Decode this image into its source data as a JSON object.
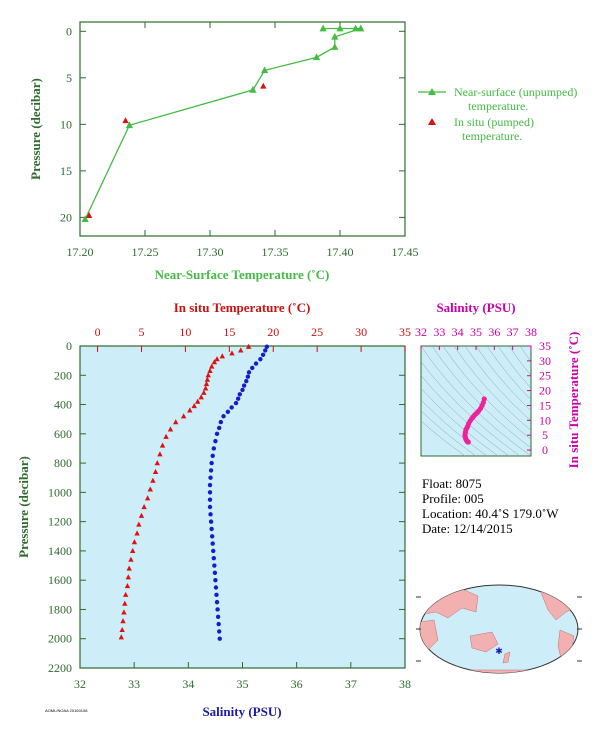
{
  "colors": {
    "axis_green": "#2e6b2e",
    "near_surface": "#44bb44",
    "in_situ_temp": "#dd1111",
    "salinity": "#1a1acc",
    "ts_magenta": "#ee2299",
    "panel_bg": "#cdeef8",
    "map_ocean": "#cdeef8",
    "map_land": "#f2b0b0"
  },
  "chart_data": [
    {
      "type": "line",
      "xlabel": "Near-Surface Temperature (˚C)",
      "ylabel": "Pressure (decibar)",
      "xlim": [
        17.2,
        17.45
      ],
      "ylim": [
        22,
        -1
      ],
      "xticks": [
        "17.20",
        "17.25",
        "17.30",
        "17.35",
        "17.40",
        "17.45"
      ],
      "yticks": [
        "0",
        "5",
        "10",
        "15",
        "20"
      ],
      "grid": false,
      "legend_position": "right",
      "series": [
        {
          "name": "Near-surface (unpumped) temperature.",
          "marker": "triangle",
          "points": [
            [
              17.387,
              -0.3
            ],
            [
              17.4,
              -0.3
            ],
            [
              17.412,
              -0.3
            ],
            [
              17.416,
              -0.3
            ],
            [
              17.396,
              0.6
            ],
            [
              17.396,
              1.7
            ],
            [
              17.382,
              2.8
            ],
            [
              17.342,
              4.2
            ],
            [
              17.333,
              6.3
            ],
            [
              17.238,
              10.1
            ],
            [
              17.204,
              20.2
            ]
          ]
        },
        {
          "name": "In situ (pumped) temperature.",
          "marker": "triangle",
          "points": [
            [
              17.235,
              9.6
            ],
            [
              17.341,
              5.9
            ],
            [
              17.207,
              19.8
            ]
          ]
        }
      ]
    },
    {
      "type": "scatter",
      "ylabel": "Pressure (decibar)",
      "ylim": [
        2200,
        0
      ],
      "yticks": [
        "0",
        "200",
        "400",
        "600",
        "800",
        "1000",
        "1200",
        "1400",
        "1600",
        "1800",
        "2000",
        "2200"
      ],
      "top_axis": {
        "label": "In situ Temperature (˚C)",
        "range": [
          -2,
          35
        ],
        "ticks": [
          "0",
          "5",
          "10",
          "15",
          "20",
          "25",
          "30",
          "35"
        ]
      },
      "bottom_axis": {
        "label": "Salinity (PSU)",
        "range": [
          32,
          38
        ],
        "ticks": [
          "32",
          "33",
          "34",
          "35",
          "36",
          "37",
          "38"
        ]
      },
      "series": [
        {
          "name": "In situ Temperature (˚C)",
          "marker": "triangle",
          "axis": "top",
          "points": [
            [
              17.2,
              5
            ],
            [
              16.3,
              30
            ],
            [
              15.3,
              50
            ],
            [
              14.2,
              70
            ],
            [
              13.6,
              90
            ],
            [
              13.3,
              110
            ],
            [
              13.0,
              140
            ],
            [
              12.8,
              170
            ],
            [
              12.6,
              200
            ],
            [
              12.5,
              230
            ],
            [
              12.4,
              260
            ],
            [
              12.3,
              290
            ],
            [
              12.1,
              320
            ],
            [
              11.8,
              350
            ],
            [
              11.4,
              380
            ],
            [
              11.0,
              410
            ],
            [
              10.5,
              440
            ],
            [
              9.8,
              480
            ],
            [
              8.9,
              520
            ],
            [
              8.3,
              570
            ],
            [
              7.8,
              620
            ],
            [
              7.4,
              680
            ],
            [
              7.1,
              740
            ],
            [
              6.8,
              800
            ],
            [
              6.6,
              860
            ],
            [
              6.3,
              920
            ],
            [
              6.0,
              980
            ],
            [
              5.7,
              1040
            ],
            [
              5.3,
              1100
            ],
            [
              5.0,
              1160
            ],
            [
              4.7,
              1220
            ],
            [
              4.5,
              1280
            ],
            [
              4.2,
              1340
            ],
            [
              4.0,
              1400
            ],
            [
              3.8,
              1460
            ],
            [
              3.6,
              1520
            ],
            [
              3.5,
              1580
            ],
            [
              3.4,
              1640
            ],
            [
              3.2,
              1700
            ],
            [
              3.1,
              1760
            ],
            [
              3.0,
              1820
            ],
            [
              2.9,
              1880
            ],
            [
              2.8,
              1940
            ],
            [
              2.7,
              1990
            ]
          ]
        },
        {
          "name": "Salinity (PSU)",
          "marker": "dot",
          "axis": "bottom",
          "points": [
            [
              35.45,
              5
            ],
            [
              35.42,
              30
            ],
            [
              35.38,
              60
            ],
            [
              35.33,
              90
            ],
            [
              35.25,
              120
            ],
            [
              35.18,
              150
            ],
            [
              35.12,
              180
            ],
            [
              35.1,
              210
            ],
            [
              35.07,
              240
            ],
            [
              35.03,
              270
            ],
            [
              35.0,
              300
            ],
            [
              34.95,
              330
            ],
            [
              34.92,
              360
            ],
            [
              34.88,
              390
            ],
            [
              34.8,
              420
            ],
            [
              34.73,
              450
            ],
            [
              34.65,
              480
            ],
            [
              34.6,
              520
            ],
            [
              34.57,
              560
            ],
            [
              34.53,
              600
            ],
            [
              34.5,
              650
            ],
            [
              34.47,
              700
            ],
            [
              34.45,
              750
            ],
            [
              34.43,
              800
            ],
            [
              34.42,
              850
            ],
            [
              34.41,
              900
            ],
            [
              34.4,
              950
            ],
            [
              34.4,
              1000
            ],
            [
              34.4,
              1050
            ],
            [
              34.4,
              1100
            ],
            [
              34.41,
              1150
            ],
            [
              34.42,
              1200
            ],
            [
              34.43,
              1250
            ],
            [
              34.44,
              1300
            ],
            [
              34.45,
              1350
            ],
            [
              34.46,
              1400
            ],
            [
              34.47,
              1450
            ],
            [
              34.48,
              1500
            ],
            [
              34.49,
              1550
            ],
            [
              34.5,
              1600
            ],
            [
              34.51,
              1650
            ],
            [
              34.52,
              1700
            ],
            [
              34.53,
              1750
            ],
            [
              34.54,
              1800
            ],
            [
              34.55,
              1850
            ],
            [
              34.56,
              1900
            ],
            [
              34.57,
              1950
            ],
            [
              34.58,
              2000
            ]
          ]
        }
      ]
    },
    {
      "type": "scatter",
      "title": "Salinity (PSU)",
      "ylabel": "In situ Temperature (˚C)",
      "xlim": [
        32,
        38
      ],
      "ylim": [
        -2,
        35
      ],
      "xticks": [
        "32",
        "33",
        "34",
        "35",
        "36",
        "37",
        "38"
      ],
      "yticks": [
        "0",
        "5",
        "10",
        "15",
        "20",
        "25",
        "30",
        "35"
      ],
      "series": [
        {
          "name": "T-S",
          "marker": "dot",
          "points": [
            [
              35.45,
              17.2
            ],
            [
              35.4,
              16.0
            ],
            [
              35.33,
              15.0
            ],
            [
              35.25,
              14.0
            ],
            [
              35.15,
              13.2
            ],
            [
              35.07,
              12.6
            ],
            [
              35.0,
              12.2
            ],
            [
              34.93,
              11.8
            ],
            [
              34.85,
              11.2
            ],
            [
              34.77,
              10.6
            ],
            [
              34.68,
              9.8
            ],
            [
              34.6,
              8.9
            ],
            [
              34.55,
              8.0
            ],
            [
              34.5,
              7.4
            ],
            [
              34.45,
              6.8
            ],
            [
              34.42,
              6.0
            ],
            [
              34.4,
              5.2
            ],
            [
              34.41,
              4.6
            ],
            [
              34.43,
              4.0
            ],
            [
              34.46,
              3.5
            ],
            [
              34.5,
              3.1
            ],
            [
              34.54,
              2.8
            ],
            [
              34.58,
              2.7
            ]
          ]
        }
      ]
    }
  ],
  "info": {
    "float": "Float:  8075",
    "profile": "Profile:  005",
    "location": "Location:  40.4˚S  179.0˚W",
    "date": "Date:  12/14/2015"
  },
  "footer_stamp": "AOML/NOAA 20160108"
}
